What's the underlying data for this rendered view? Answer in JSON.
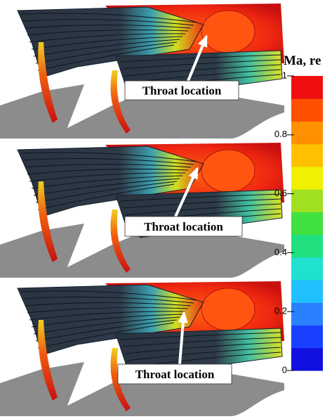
{
  "panels": [
    {
      "label": "Throat location"
    },
    {
      "label": "Throat location"
    },
    {
      "label": "Throat location"
    }
  ],
  "colorbar": {
    "title": "Ma, re",
    "range": [
      0,
      1
    ],
    "ticks": [
      0,
      0.2,
      0.4,
      0.6,
      0.8,
      1
    ],
    "colors": [
      "#1010e0",
      "#1a40ff",
      "#2a80ff",
      "#20c0ff",
      "#20e0d0",
      "#20e080",
      "#40e040",
      "#a0e020",
      "#f0f000",
      "#ffc000",
      "#ff9000",
      "#ff5000",
      "#f01010"
    ]
  }
}
